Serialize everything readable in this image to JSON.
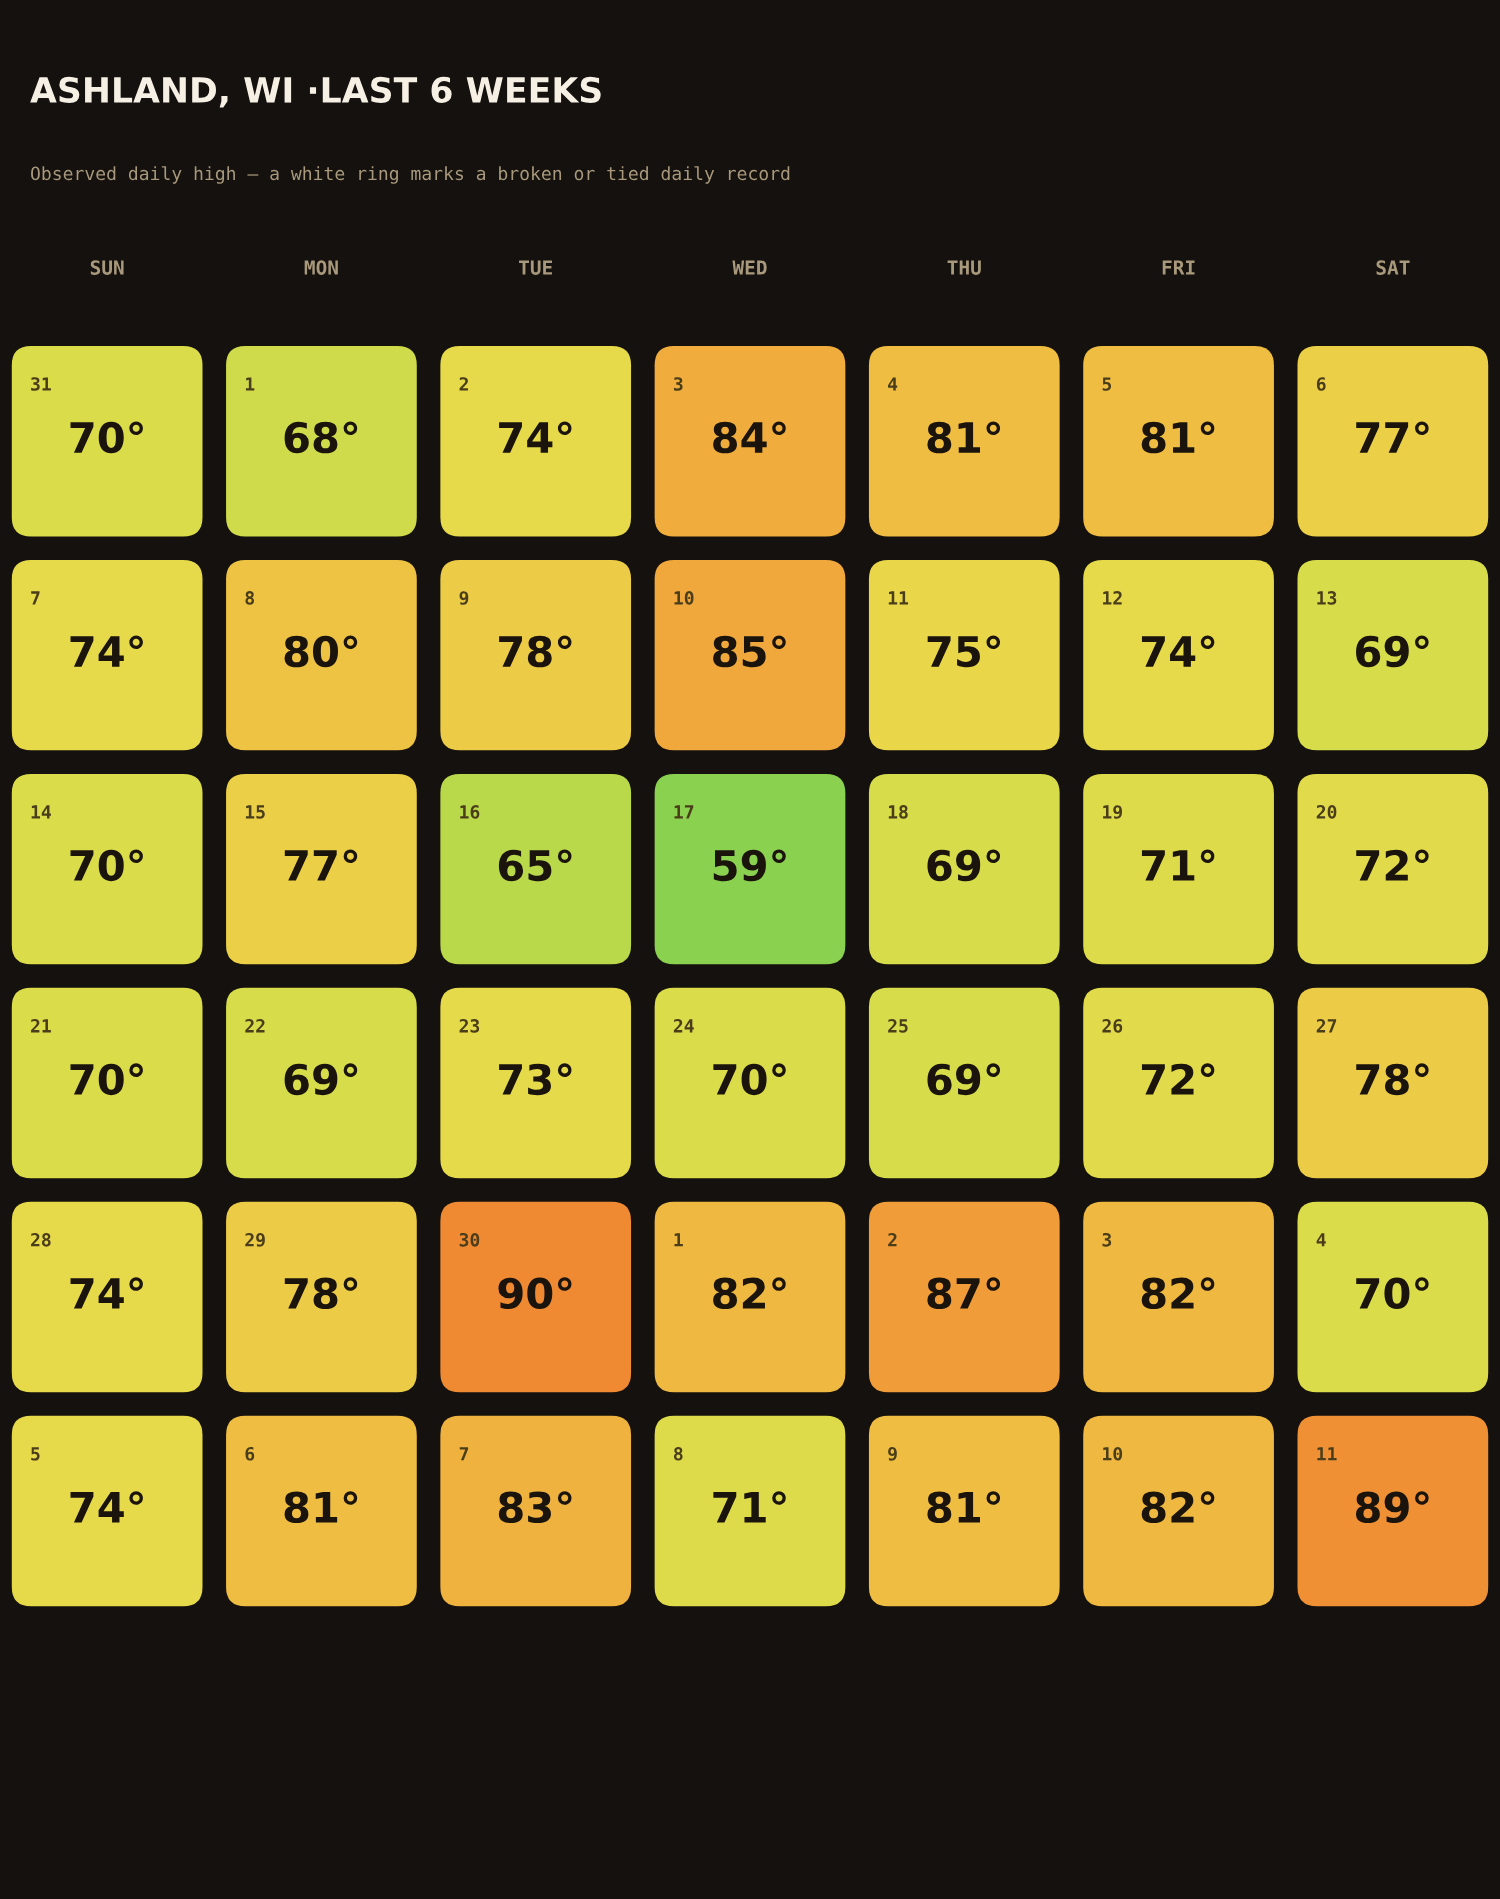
{
  "chart_data": {
    "type": "heatmap",
    "title": "ASHLAND, WI ·LAST 6 WEEKS",
    "subtitle": "Observed daily high — a white ring marks a broken or tied daily record",
    "categories": [
      "SUN",
      "MON",
      "TUE",
      "WED",
      "THU",
      "FRI",
      "SAT"
    ],
    "y_categories": [
      null,
      null,
      null,
      null,
      null,
      null
    ],
    "cells": [
      [
        70,
        68,
        74,
        84,
        81,
        81,
        77
      ],
      [
        74,
        80,
        78,
        85,
        75,
        74,
        69
      ],
      [
        70,
        77,
        65,
        59,
        69,
        71,
        72
      ],
      [
        70,
        69,
        73,
        70,
        69,
        72,
        78
      ],
      [
        74,
        78,
        90,
        82,
        87,
        82,
        70
      ],
      [
        74,
        81,
        83,
        71,
        81,
        82,
        89
      ]
    ],
    "cell_labels": [
      [
        "70°",
        "68°",
        "74°",
        "84°",
        "81°",
        "81°",
        "77°"
      ],
      [
        "74°",
        "80°",
        "78°",
        "85°",
        "75°",
        "74°",
        "69°"
      ],
      [
        "70°",
        "77°",
        "65°",
        "59°",
        "69°",
        "71°",
        "72°"
      ],
      [
        "70°",
        "69°",
        "73°",
        "70°",
        "69°",
        "72°",
        "78°"
      ],
      [
        "74°",
        "78°",
        "90°",
        "82°",
        "87°",
        "82°",
        "70°"
      ],
      [
        "74°",
        "81°",
        "83°",
        "71°",
        "81°",
        "82°",
        "89°"
      ]
    ],
    "annotations": [
      "31",
      "1",
      "2",
      "3",
      "4",
      "5",
      "6",
      "7",
      "8",
      "9",
      "10",
      "11",
      "12",
      "13",
      "14",
      "15",
      "16",
      "17",
      "18",
      "19",
      "20",
      "21",
      "22",
      "23",
      "24",
      "25",
      "26",
      "27",
      "28",
      "29",
      "30",
      "1",
      "2",
      "3",
      "4",
      "5",
      "6",
      "7",
      "8",
      "9",
      "10",
      "11"
    ],
    "colors": [
      "#8bd150",
      "#b3d84a",
      "#d9dc4a",
      "#e8d94a",
      "#eec444",
      "#f0a93c",
      "#ef8a33"
    ]
  }
}
